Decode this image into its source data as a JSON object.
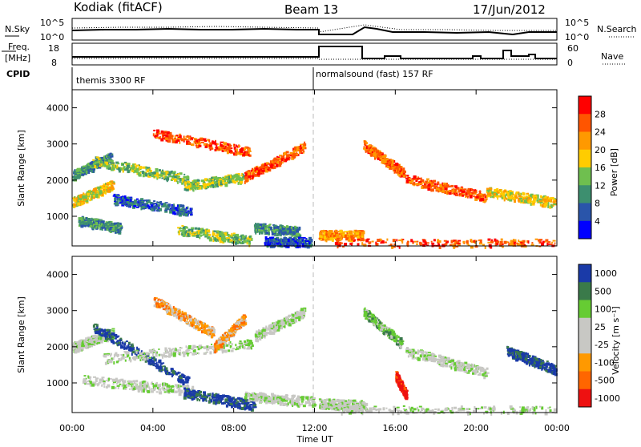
{
  "header": {
    "station": "Kodiak (fitACF)",
    "beam": "Beam 13",
    "date": "17/Jun/2012"
  },
  "top_panels": {
    "nsky_label": "N.Sky",
    "nsky_ticks": [
      "10^5",
      "10^0"
    ],
    "nsearch_label": "N.Search",
    "nsearch_ticks": [
      "10^5",
      "10^0"
    ],
    "freq_label_line1": "Freq.",
    "freq_label_line2": "[MHz]",
    "freq_ticks": [
      "18",
      "8"
    ],
    "nave_label": "Nave",
    "nave_ticks": [
      "60",
      "0"
    ],
    "cpid_label": "CPID",
    "cpid_segments": [
      {
        "label": "themis 3300 RF",
        "start_hour": 0,
        "end_hour": 12
      },
      {
        "label": "normalsound (fast) 157 RF",
        "start_hour": 12,
        "end_hour": 24
      }
    ]
  },
  "power_colorbar": {
    "label": "Power [dB]",
    "ticks": [
      "28",
      "24",
      "20",
      "16",
      "12",
      "8",
      "4"
    ],
    "colors": [
      "#ff0000",
      "#ff5500",
      "#ff9900",
      "#ffcc00",
      "#6fbf4f",
      "#3d8f6f",
      "#2a55aa",
      "#0000ff"
    ]
  },
  "velocity_colorbar": {
    "label": "Velocity [m s⁻¹]",
    "ticks": [
      "1000",
      "500",
      "100",
      "25",
      "-25",
      "-100",
      "-500",
      "-1000"
    ],
    "colors": [
      "#1a3aa8",
      "#3a7a4a",
      "#66cc33",
      "#c8c8c4",
      "#c8c8c4",
      "#ff9900",
      "#ff6600",
      "#ee1111"
    ]
  },
  "chart_data": [
    {
      "type": "heatmap",
      "title": "Power",
      "ylabel": "Slant Range [km]",
      "xlabel": "Time UT",
      "x_ticks": [
        "00:00",
        "04:00",
        "08:00",
        "12:00",
        "16:00",
        "20:00",
        "00:00"
      ],
      "y_ticks": [
        "4000",
        "3000",
        "2000",
        "1000"
      ],
      "ylim": [
        180,
        4500
      ],
      "xlim_hours": [
        0,
        24
      ],
      "scatter_features": [
        {
          "t0": 0.0,
          "t1": 1.9,
          "r0": 2150,
          "r1": 2650,
          "level": 5
        },
        {
          "t0": 0.0,
          "t1": 2.0,
          "r0": 1400,
          "r1": 1900,
          "level": 3
        },
        {
          "t0": 1.0,
          "t1": 5.7,
          "r0": 2550,
          "r1": 2050,
          "level": 4
        },
        {
          "t0": 2.0,
          "t1": 5.9,
          "r0": 1500,
          "r1": 1150,
          "level": 6
        },
        {
          "t0": 5.5,
          "t1": 8.5,
          "r0": 1850,
          "r1": 2100,
          "level": 4
        },
        {
          "t0": 0.3,
          "t1": 2.4,
          "r0": 900,
          "r1": 700,
          "level": 5
        },
        {
          "t0": 5.2,
          "t1": 8.8,
          "r0": 650,
          "r1": 350,
          "level": 4
        },
        {
          "t0": 9.0,
          "t1": 11.2,
          "r0": 700,
          "r1": 600,
          "level": 5
        },
        {
          "t0": 9.5,
          "t1": 11.8,
          "r0": 320,
          "r1": 300,
          "level": 6
        },
        {
          "t0": 4.0,
          "t1": 8.8,
          "r0": 3300,
          "r1": 2800,
          "level": 1
        },
        {
          "t0": 8.5,
          "t1": 11.5,
          "r0": 2100,
          "r1": 2950,
          "level": 1
        },
        {
          "t0": 14.4,
          "t1": 16.4,
          "r0": 3000,
          "r1": 2200,
          "level": 1
        },
        {
          "t0": 16.5,
          "t1": 20.5,
          "r0": 2050,
          "r1": 1550,
          "level": 1
        },
        {
          "t0": 20.5,
          "t1": 23.9,
          "r0": 1700,
          "r1": 1400,
          "level": 3
        },
        {
          "t0": 12.2,
          "t1": 14.4,
          "r0": 500,
          "r1": 500,
          "level": 2
        },
        {
          "t0": 13.0,
          "t1": 23.9,
          "r0": 260,
          "r1": 260,
          "level": 1
        }
      ]
    },
    {
      "type": "heatmap",
      "title": "Velocity",
      "ylabel": "Slant Range [km]",
      "xlabel": "Time UT",
      "x_ticks": [
        "00:00",
        "04:00",
        "08:00",
        "12:00",
        "16:00",
        "20:00",
        "00:00"
      ],
      "y_ticks": [
        "4000",
        "3000",
        "2000",
        "1000"
      ],
      "ylim": [
        180,
        4500
      ],
      "xlim_hours": [
        0,
        24
      ],
      "scatter_features": [
        {
          "t0": 0.0,
          "t1": 2.0,
          "r0": 2000,
          "r1": 2400,
          "level": 3
        },
        {
          "t0": 1.0,
          "t1": 5.7,
          "r0": 2600,
          "r1": 1050,
          "level": 0
        },
        {
          "t0": 1.5,
          "t1": 9.0,
          "r0": 1700,
          "r1": 2100,
          "level": 3
        },
        {
          "t0": 0.5,
          "t1": 6.0,
          "r0": 1100,
          "r1": 800,
          "level": 3
        },
        {
          "t0": 5.5,
          "t1": 9.0,
          "r0": 750,
          "r1": 400,
          "level": 0
        },
        {
          "t0": 8.5,
          "t1": 12.0,
          "r0": 650,
          "r1": 500,
          "level": 3
        },
        {
          "t0": 12.2,
          "t1": 14.5,
          "r0": 450,
          "r1": 400,
          "level": 3
        },
        {
          "t0": 7.0,
          "t1": 8.5,
          "r0": 2000,
          "r1": 2800,
          "level": 5
        },
        {
          "t0": 9.0,
          "t1": 11.5,
          "r0": 2300,
          "r1": 3000,
          "level": 3
        },
        {
          "t0": 4.0,
          "t1": 7.0,
          "r0": 3300,
          "r1": 2400,
          "level": 5
        },
        {
          "t0": 14.4,
          "t1": 16.3,
          "r0": 3000,
          "r1": 2100,
          "level": 2
        },
        {
          "t0": 16.5,
          "t1": 20.5,
          "r0": 1900,
          "r1": 1300,
          "level": 3
        },
        {
          "t0": 21.5,
          "t1": 23.9,
          "r0": 1900,
          "r1": 1400,
          "level": 0
        },
        {
          "t0": 16.0,
          "t1": 16.5,
          "r0": 1200,
          "r1": 700,
          "level": 7
        },
        {
          "t0": 13.0,
          "t1": 23.9,
          "r0": 250,
          "r1": 250,
          "level": 3
        }
      ]
    }
  ]
}
